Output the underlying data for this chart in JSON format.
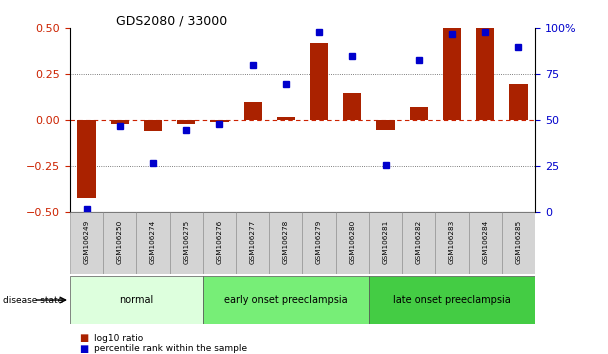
{
  "title": "GDS2080 / 33000",
  "samples": [
    "GSM106249",
    "GSM106250",
    "GSM106274",
    "GSM106275",
    "GSM106276",
    "GSM106277",
    "GSM106278",
    "GSM106279",
    "GSM106280",
    "GSM106281",
    "GSM106282",
    "GSM106283",
    "GSM106284",
    "GSM106285"
  ],
  "log10_ratio": [
    -0.42,
    -0.02,
    -0.06,
    -0.02,
    -0.01,
    0.1,
    0.02,
    0.42,
    0.15,
    -0.05,
    0.07,
    0.5,
    0.5,
    0.2
  ],
  "percentile_rank": [
    2,
    47,
    27,
    45,
    48,
    80,
    70,
    98,
    85,
    26,
    83,
    97,
    98,
    90
  ],
  "groups": [
    {
      "label": "normal",
      "start": 0,
      "end": 4,
      "color": "#ddffdd"
    },
    {
      "label": "early onset preeclampsia",
      "start": 4,
      "end": 9,
      "color": "#77ee77"
    },
    {
      "label": "late onset preeclampsia",
      "start": 9,
      "end": 14,
      "color": "#44cc44"
    }
  ],
  "bar_color": "#aa2200",
  "dot_color": "#0000cc",
  "zero_line_color": "#cc2200",
  "ylim_left": [
    -0.5,
    0.5
  ],
  "ylim_right": [
    0,
    100
  ],
  "yticks_left": [
    -0.5,
    -0.25,
    0,
    0.25,
    0.5
  ],
  "yticks_right": [
    0,
    25,
    50,
    75,
    100
  ],
  "background_color": "#ffffff",
  "tick_label_color_left": "#cc2200",
  "tick_label_color_right": "#0000cc",
  "legend_label_bar": "log10 ratio",
  "legend_label_dot": "percentile rank within the sample"
}
